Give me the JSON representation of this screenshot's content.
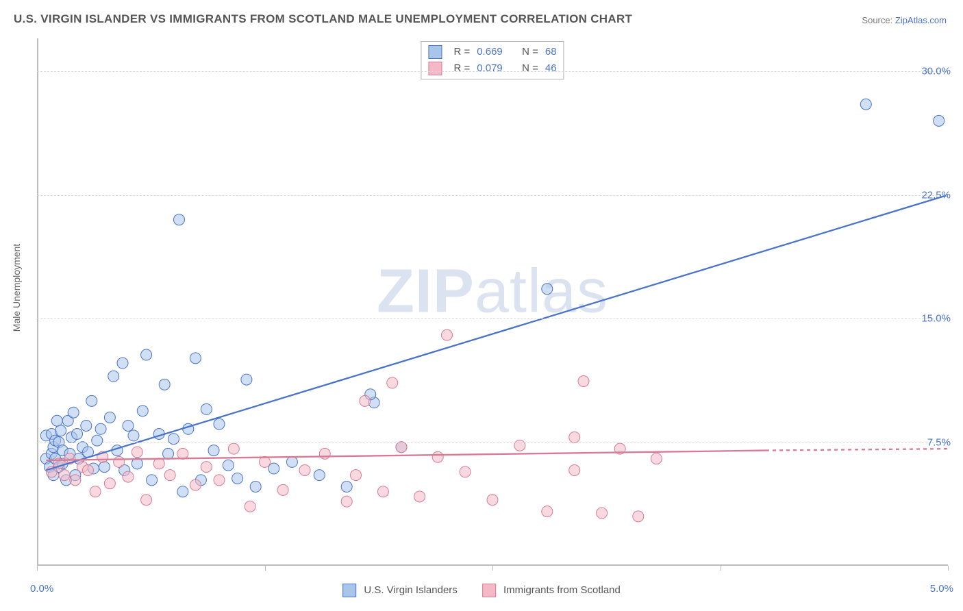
{
  "title": "U.S. VIRGIN ISLANDER VS IMMIGRANTS FROM SCOTLAND MALE UNEMPLOYMENT CORRELATION CHART",
  "source_label": "Source:",
  "source_site": "ZipAtlas.com",
  "y_axis_label": "Male Unemployment",
  "watermark_a": "ZIP",
  "watermark_b": "atlas",
  "chart": {
    "type": "scatter",
    "background_color": "#ffffff",
    "grid_color": "#d8d8d8",
    "axis_color": "#bbbbbb",
    "x_domain": [
      0,
      5
    ],
    "y_domain": [
      0,
      32
    ],
    "x_ticks": [
      0,
      1.25,
      2.5,
      3.75,
      5
    ],
    "x_tick_labels_shown": {
      "0": "0.0%",
      "5": "5.0%"
    },
    "y_ticks": [
      7.5,
      15.0,
      22.5,
      30.0
    ],
    "y_tick_labels": [
      "7.5%",
      "15.0%",
      "22.5%",
      "30.0%"
    ],
    "marker_radius": 8,
    "marker_opacity": 0.55,
    "line_width": 2.3,
    "title_fontsize": 17,
    "tick_fontsize": 15,
    "label_fontsize": 14,
    "series": [
      {
        "name": "U.S. Virgin Islanders",
        "color_fill": "#a9c5ea",
        "color_stroke": "#4a74c9",
        "r_value": 0.669,
        "n_value": 68,
        "regression": {
          "x1": 0.05,
          "y1": 5.8,
          "x2": 5.0,
          "y2": 22.5
        },
        "points": [
          [
            0.05,
            6.5
          ],
          [
            0.05,
            7.9
          ],
          [
            0.07,
            6.0
          ],
          [
            0.08,
            8.0
          ],
          [
            0.08,
            6.8
          ],
          [
            0.09,
            7.2
          ],
          [
            0.09,
            5.5
          ],
          [
            0.1,
            7.6
          ],
          [
            0.1,
            6.5
          ],
          [
            0.11,
            8.8
          ],
          [
            0.12,
            6.0
          ],
          [
            0.12,
            7.5
          ],
          [
            0.13,
            8.2
          ],
          [
            0.14,
            6.2
          ],
          [
            0.14,
            7.0
          ],
          [
            0.16,
            5.2
          ],
          [
            0.17,
            8.8
          ],
          [
            0.18,
            6.8
          ],
          [
            0.19,
            7.8
          ],
          [
            0.2,
            9.3
          ],
          [
            0.21,
            5.5
          ],
          [
            0.22,
            8.0
          ],
          [
            0.23,
            6.5
          ],
          [
            0.25,
            7.2
          ],
          [
            0.27,
            8.5
          ],
          [
            0.28,
            6.9
          ],
          [
            0.3,
            10.0
          ],
          [
            0.31,
            5.9
          ],
          [
            0.33,
            7.6
          ],
          [
            0.35,
            8.3
          ],
          [
            0.37,
            6.0
          ],
          [
            0.4,
            9.0
          ],
          [
            0.42,
            11.5
          ],
          [
            0.44,
            7.0
          ],
          [
            0.47,
            12.3
          ],
          [
            0.48,
            5.8
          ],
          [
            0.5,
            8.5
          ],
          [
            0.53,
            7.9
          ],
          [
            0.55,
            6.2
          ],
          [
            0.58,
            9.4
          ],
          [
            0.6,
            12.8
          ],
          [
            0.63,
            5.2
          ],
          [
            0.67,
            8.0
          ],
          [
            0.7,
            11.0
          ],
          [
            0.72,
            6.8
          ],
          [
            0.75,
            7.7
          ],
          [
            0.78,
            21.0
          ],
          [
            0.8,
            4.5
          ],
          [
            0.83,
            8.3
          ],
          [
            0.87,
            12.6
          ],
          [
            0.9,
            5.2
          ],
          [
            0.93,
            9.5
          ],
          [
            0.97,
            7.0
          ],
          [
            1.0,
            8.6
          ],
          [
            1.05,
            6.1
          ],
          [
            1.1,
            5.3
          ],
          [
            1.15,
            11.3
          ],
          [
            1.2,
            4.8
          ],
          [
            1.3,
            5.9
          ],
          [
            1.4,
            6.3
          ],
          [
            1.55,
            5.5
          ],
          [
            1.7,
            4.8
          ],
          [
            1.85,
            9.9
          ],
          [
            1.83,
            10.4
          ],
          [
            2.0,
            7.2
          ],
          [
            2.8,
            16.8
          ],
          [
            4.55,
            28.0
          ],
          [
            4.95,
            27.0
          ]
        ]
      },
      {
        "name": "Immigrants from Scotland",
        "color_fill": "#f3b9c6",
        "color_stroke": "#d97a94",
        "r_value": 0.079,
        "n_value": 46,
        "regression": {
          "x1": 0.05,
          "y1": 6.4,
          "x2": 4.0,
          "y2": 7.0
        },
        "regression_ext": {
          "x1": 4.0,
          "y1": 7.0,
          "x2": 5.0,
          "y2": 7.1
        },
        "points": [
          [
            0.08,
            5.7
          ],
          [
            0.12,
            6.2
          ],
          [
            0.15,
            5.5
          ],
          [
            0.18,
            6.5
          ],
          [
            0.21,
            5.2
          ],
          [
            0.25,
            6.0
          ],
          [
            0.28,
            5.8
          ],
          [
            0.32,
            4.5
          ],
          [
            0.36,
            6.6
          ],
          [
            0.4,
            5.0
          ],
          [
            0.45,
            6.3
          ],
          [
            0.5,
            5.4
          ],
          [
            0.55,
            6.9
          ],
          [
            0.6,
            4.0
          ],
          [
            0.67,
            6.2
          ],
          [
            0.73,
            5.5
          ],
          [
            0.8,
            6.8
          ],
          [
            0.87,
            4.9
          ],
          [
            0.93,
            6.0
          ],
          [
            1.0,
            5.2
          ],
          [
            1.08,
            7.1
          ],
          [
            1.17,
            3.6
          ],
          [
            1.25,
            6.3
          ],
          [
            1.35,
            4.6
          ],
          [
            1.47,
            5.8
          ],
          [
            1.58,
            6.8
          ],
          [
            1.7,
            3.9
          ],
          [
            1.75,
            5.5
          ],
          [
            1.8,
            10.0
          ],
          [
            1.9,
            4.5
          ],
          [
            1.95,
            11.1
          ],
          [
            2.0,
            7.2
          ],
          [
            2.1,
            4.2
          ],
          [
            2.2,
            6.6
          ],
          [
            2.25,
            14.0
          ],
          [
            2.35,
            5.7
          ],
          [
            2.5,
            4.0
          ],
          [
            2.65,
            7.3
          ],
          [
            2.8,
            3.3
          ],
          [
            2.95,
            5.8
          ],
          [
            2.95,
            7.8
          ],
          [
            3.0,
            11.2
          ],
          [
            3.1,
            3.2
          ],
          [
            3.2,
            7.1
          ],
          [
            3.3,
            3.0
          ],
          [
            3.4,
            6.5
          ]
        ]
      }
    ]
  },
  "legend": {
    "r_label": "R =",
    "n_label": "N ="
  }
}
